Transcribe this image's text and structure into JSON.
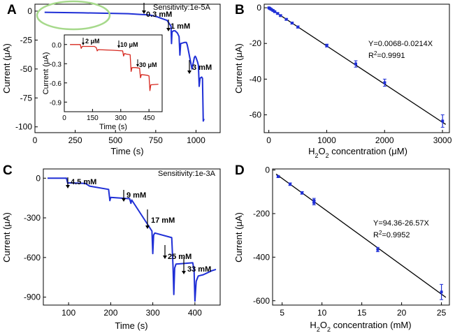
{
  "chart_data": [
    {
      "panel": "A",
      "type": "line",
      "xlabel": "Time (s)",
      "ylabel": "Current (μA)",
      "xlim": [
        0,
        1150
      ],
      "ylim": [
        -105,
        6
      ],
      "xticks": [
        0,
        250,
        500,
        750,
        1000
      ],
      "yticks": [
        0,
        -25,
        -50,
        -75,
        -100
      ],
      "sensitivity": "Sensitivity:1e-5A",
      "color": "#1f2fd6",
      "x": [
        60,
        300,
        580,
        650,
        700,
        720,
        735,
        760,
        790,
        820,
        830,
        845,
        848,
        851,
        860,
        870,
        885,
        895,
        900,
        905,
        930,
        940,
        945,
        950,
        975,
        990,
        995,
        1000,
        1010,
        1015,
        1020,
        1025,
        1035,
        1040,
        1045,
        1050
      ],
      "y": [
        -1,
        -1.5,
        -2.2,
        -2.8,
        -3.2,
        -3.6,
        -4,
        -5,
        -6.5,
        -8,
        -10,
        -13,
        -28,
        -18,
        -17,
        -17,
        -19,
        -22,
        -38,
        -28,
        -27,
        -27,
        -29,
        -32,
        -50,
        -40,
        -39,
        -40,
        -44,
        -47,
        -65,
        -58,
        -57,
        -58,
        -95,
        -93
      ],
      "annotations": [
        "0.3 mM",
        "1 mM",
        "3 mM"
      ],
      "inset": {
        "xlabel": "Time (s)",
        "ylabel": "Current (μA)",
        "xlim": [
          0,
          520
        ],
        "ylim": [
          -1.05,
          0.15
        ],
        "xticks": [
          0,
          150,
          300,
          450
        ],
        "yticks": [
          0.0,
          -0.3,
          -0.6,
          -0.9
        ],
        "color": "#d6281f",
        "x": [
          30,
          85,
          90,
          95,
          160,
          170,
          175,
          180,
          260,
          310,
          315,
          320,
          330,
          350,
          355,
          360,
          380,
          400,
          405,
          410,
          440,
          450,
          455,
          460,
          500
        ],
        "y": [
          0.0,
          0.0,
          -0.06,
          -0.03,
          -0.03,
          -0.05,
          -0.1,
          -0.08,
          -0.09,
          -0.1,
          -0.18,
          -0.14,
          -0.15,
          -0.16,
          -0.42,
          -0.36,
          -0.36,
          -0.37,
          -0.52,
          -0.47,
          -0.48,
          -0.49,
          -0.72,
          -0.63,
          -0.62
        ],
        "annotations": [
          "2 μM",
          "10 μM",
          "30 μM"
        ]
      }
    },
    {
      "panel": "B",
      "type": "scatter",
      "xlabel": "H2O2 concentration (μM)",
      "ylabel": "Current (μA)",
      "xlim": [
        -80,
        3120
      ],
      "ylim": [
        -70,
        2
      ],
      "xticks": [
        0,
        1000,
        2000,
        3000
      ],
      "yticks": [
        0,
        -20,
        -40,
        -60
      ],
      "equation": "Y=0.0068-0.0214X",
      "r2": "R²=0.9991",
      "x": [
        2,
        12,
        22,
        42,
        72,
        102,
        152,
        202,
        302,
        402,
        502,
        1002,
        1502,
        2002,
        3002
      ],
      "y": [
        -0.05,
        -0.3,
        -0.5,
        -0.9,
        -1.5,
        -2.2,
        -3.2,
        -4.4,
        -6.5,
        -8.6,
        -10.8,
        -21.2,
        -31.5,
        -42,
        -63.5
      ],
      "yerr": [
        0.2,
        0.2,
        0.2,
        0.3,
        0.3,
        0.3,
        0.4,
        0.4,
        0.5,
        0.5,
        0.6,
        0.8,
        1.8,
        2.0,
        3.5
      ],
      "fit": {
        "intercept": 0.0068,
        "slope": -0.0214
      },
      "color": "#1f2fd6"
    },
    {
      "panel": "C",
      "type": "line",
      "xlabel": "Time (s)",
      "ylabel": "Current (μA)",
      "xlim": [
        40,
        460
      ],
      "ylim": [
        -960,
        70
      ],
      "xticks": [
        100,
        200,
        300,
        400
      ],
      "yticks": [
        0,
        -300,
        -600,
        -900
      ],
      "sensitivity": "Sensitivity:1e-3A",
      "color": "#1f2fd6",
      "x": [
        50,
        95,
        98,
        100,
        140,
        150,
        195,
        198,
        200,
        245,
        248,
        250,
        298,
        300,
        302,
        305,
        345,
        348,
        350,
        352,
        355,
        395,
        398,
        400,
        403,
        408,
        420,
        440,
        450
      ],
      "y": [
        0,
        0,
        -40,
        -35,
        -40,
        -60,
        -85,
        -170,
        -145,
        -155,
        -190,
        -165,
        -400,
        -570,
        -430,
        -415,
        -450,
        -660,
        -880,
        -680,
        -650,
        -640,
        -700,
        -930,
        -780,
        -740,
        -730,
        -700,
        -690
      ],
      "annotations": [
        "4.5 mM",
        "9 mM",
        "17 mM",
        "25 mM",
        "33 mM"
      ]
    },
    {
      "panel": "D",
      "type": "scatter",
      "xlabel": "H2O2 concentration (mM)",
      "ylabel": "Current (μA)",
      "xlim": [
        3.8,
        26
      ],
      "ylim": [
        -620,
        5
      ],
      "xticks": [
        5,
        10,
        15,
        20,
        25
      ],
      "yticks": [
        0,
        -200,
        -400,
        -600
      ],
      "equation": "Y=94.36-26.57X",
      "r2": "R²=0.9952",
      "x": [
        4.5,
        6,
        7.5,
        9,
        9,
        17,
        25
      ],
      "y": [
        -30,
        -65,
        -105,
        -140,
        -150,
        -365,
        -560
      ],
      "yerr": [
        5,
        6,
        6,
        10,
        10,
        10,
        35
      ],
      "fit": {
        "intercept": 94.36,
        "slope": -26.57
      },
      "color": "#1f2fd6"
    }
  ],
  "labels": {
    "panel_a": "A",
    "panel_b": "B",
    "panel_c": "C",
    "panel_d": "D",
    "a_xlabel": "Time (s)",
    "a_ylabel": "Current (μA)",
    "a_sens": "Sensitivity:1e-5A",
    "a_ann1": "0.3 mM",
    "a_ann2": "1 mM",
    "a_ann3": "3 mM",
    "a_in_xlabel": "Time (s)",
    "a_in_ylabel": "Current (μA)",
    "a_in_ann1": "2 μM",
    "a_in_ann2": "10 μM",
    "a_in_ann3": "30 μM",
    "b_xlabel_pre": "H",
    "b_xlabel_sub1": "2",
    "b_xlabel_mid": "O",
    "b_xlabel_sub2": "2",
    "b_xlabel_post": " concentration (μM)",
    "b_ylabel": "Current (μA)",
    "b_eq": "Y=0.0068-0.0214X",
    "b_r2_pre": "R",
    "b_r2_sup": "2",
    "b_r2_post": "=0.9991",
    "c_xlabel": "Time (s)",
    "c_ylabel": "Current (μA)",
    "c_sens": "Sensitivity:1e-3A",
    "c_ann1": "4.5 mM",
    "c_ann2": "9 mM",
    "c_ann3": "17 mM",
    "c_ann4": "25 mM",
    "c_ann5": "33 mM",
    "d_xlabel_pre": "H",
    "d_xlabel_sub1": "2",
    "d_xlabel_mid": "O",
    "d_xlabel_sub2": "2",
    "d_xlabel_post": " concentration (mM)",
    "d_ylabel": "Current (μA)",
    "d_eq": "Y=94.36-26.57X",
    "d_r2_pre": "R",
    "d_r2_sup": "2",
    "d_r2_post": "=0.9952"
  },
  "colors": {
    "highlight_ellipse": "#a6d98b",
    "fit_line": "#000000"
  }
}
